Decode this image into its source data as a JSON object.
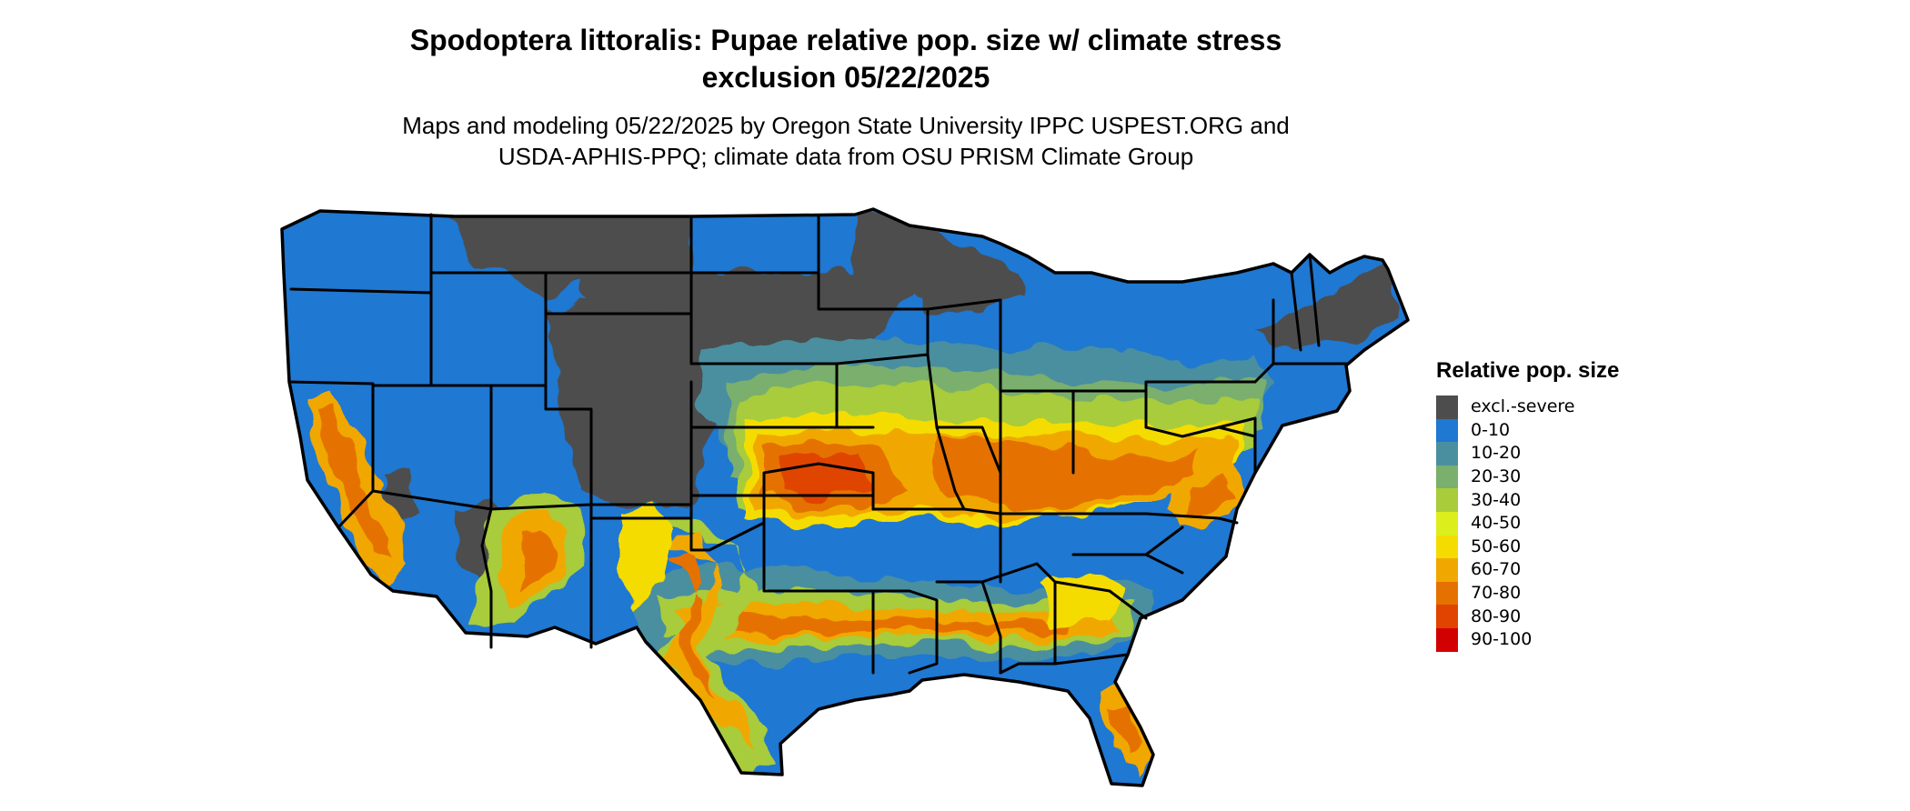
{
  "title": {
    "line1": "Spodoptera littoralis: Pupae relative pop. size w/ climate stress",
    "line2": "exclusion 05/22/2025"
  },
  "subtitle": {
    "line1": "Maps and modeling 05/22/2025 by Oregon State University IPPC USPEST.ORG and",
    "line2": "USDA-APHIS-PPQ; climate data from OSU PRISM Climate Group"
  },
  "legend": {
    "title": "Relative pop. size",
    "items": [
      {
        "label": "excl.-severe",
        "color": "#4d4d4d"
      },
      {
        "label": "0-10",
        "color": "#1f78d1"
      },
      {
        "label": "10-20",
        "color": "#4a8fa0"
      },
      {
        "label": "20-30",
        "color": "#7aaf6d"
      },
      {
        "label": "30-40",
        "color": "#a8cc3a"
      },
      {
        "label": "40-50",
        "color": "#dcef1c"
      },
      {
        "label": "50-60",
        "color": "#f5dc00"
      },
      {
        "label": "60-70",
        "color": "#f0a800"
      },
      {
        "label": "70-80",
        "color": "#e57200"
      },
      {
        "label": "80-90",
        "color": "#e04400"
      },
      {
        "label": "90-100",
        "color": "#d20000"
      }
    ]
  }
}
